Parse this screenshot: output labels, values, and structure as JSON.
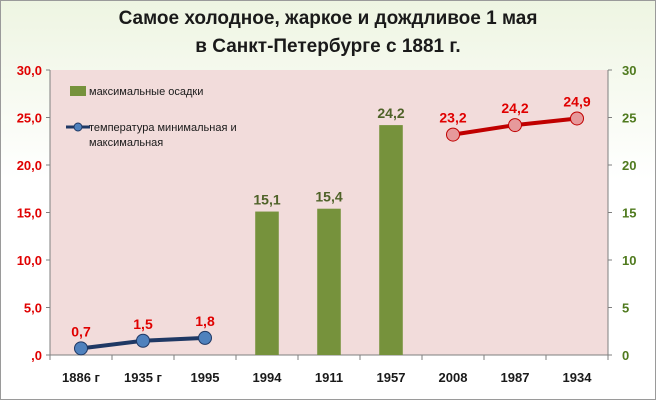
{
  "chart_data": {
    "type": "bar",
    "title_line1": "Самое холодное, жаркое и дождливое 1 мая",
    "title_line2": "в Санкт-Петербурге с 1881 г.",
    "categories": [
      "1886 г",
      "1935 г",
      "1995",
      "1994",
      "1911",
      "1957",
      "2008",
      "1987",
      "1934"
    ],
    "y_left": {
      "ticks": [
        "30,0",
        "25,0",
        "20,0",
        "15,0",
        "10,0",
        "5,0",
        ",0"
      ],
      "range": [
        0,
        30
      ],
      "color": "#e00000"
    },
    "y_right": {
      "ticks": [
        "30",
        "25",
        "20",
        "15",
        "10",
        "5",
        "0"
      ],
      "range": [
        0,
        30
      ],
      "color": "#4f7a1e"
    },
    "grid": false,
    "plot_background": "#f2dcdb",
    "legend": {
      "placement": "top-left",
      "items": [
        {
          "label": "максимальные осадки",
          "kind": "bar",
          "color": "#76923c"
        },
        {
          "label": "температура минимальная и максимальная",
          "kind": "line",
          "color": "#1f3864"
        }
      ]
    },
    "series": [
      {
        "name": "максимальные осадки",
        "kind": "bar",
        "color": "#76923c",
        "label_color": "#4f6228",
        "points": [
          {
            "category": "1994",
            "value": 15.1,
            "label": "15,1"
          },
          {
            "category": "1911",
            "value": 15.4,
            "label": "15,4"
          },
          {
            "category": "1957",
            "value": 24.2,
            "label": "24,2"
          }
        ]
      },
      {
        "name": "температура минимальная и максимальная",
        "kind": "line",
        "color": "#1f3864",
        "marker_fill": "#4f81bd",
        "label_color": "#e00000",
        "points": [
          {
            "category": "1886 г",
            "value": 0.7,
            "label": "0,7"
          },
          {
            "category": "1935 г",
            "value": 1.5,
            "label": "1,5"
          },
          {
            "category": "1995",
            "value": 1.8,
            "label": "1,8"
          }
        ]
      },
      {
        "kind": "line",
        "color": "#c00000",
        "marker_fill": "#e6999b",
        "label_color": "#e00000",
        "points": [
          {
            "category": "2008",
            "value": 23.2,
            "label": "23,2"
          },
          {
            "category": "1987",
            "value": 24.2,
            "label": "24,2"
          },
          {
            "category": "1934",
            "value": 24.9,
            "label": "24,9"
          }
        ]
      }
    ]
  }
}
